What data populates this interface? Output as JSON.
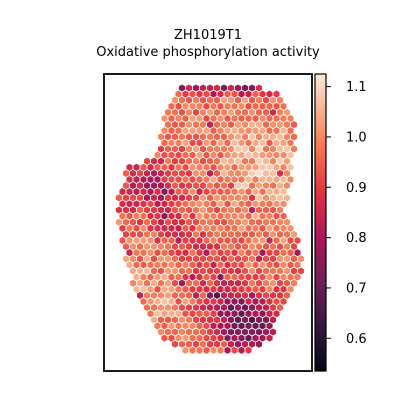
{
  "chart_data": {
    "type": "heatmap",
    "subtype": "spatial-hexbin",
    "title": "ZH1019T1",
    "subtitle": "Oxidative phosphorylation activity",
    "xlabel": "",
    "ylabel": "",
    "colormap": "rocket",
    "colorbar": {
      "range": [
        0.535,
        1.125
      ],
      "ticks": [
        "0.6",
        "0.7",
        "0.8",
        "0.9",
        "1.0",
        "1.1"
      ],
      "tick_values": [
        0.6,
        0.7,
        0.8,
        0.9,
        1.0,
        1.1
      ]
    },
    "grid": false,
    "regions": {
      "top_strip": 0.78,
      "upper_right": 1.05,
      "upper_left_notch": 0.82,
      "center": 0.97,
      "middle_band": 0.88,
      "lower_left": 1.02,
      "bottom_right_cluster": 0.72
    }
  }
}
